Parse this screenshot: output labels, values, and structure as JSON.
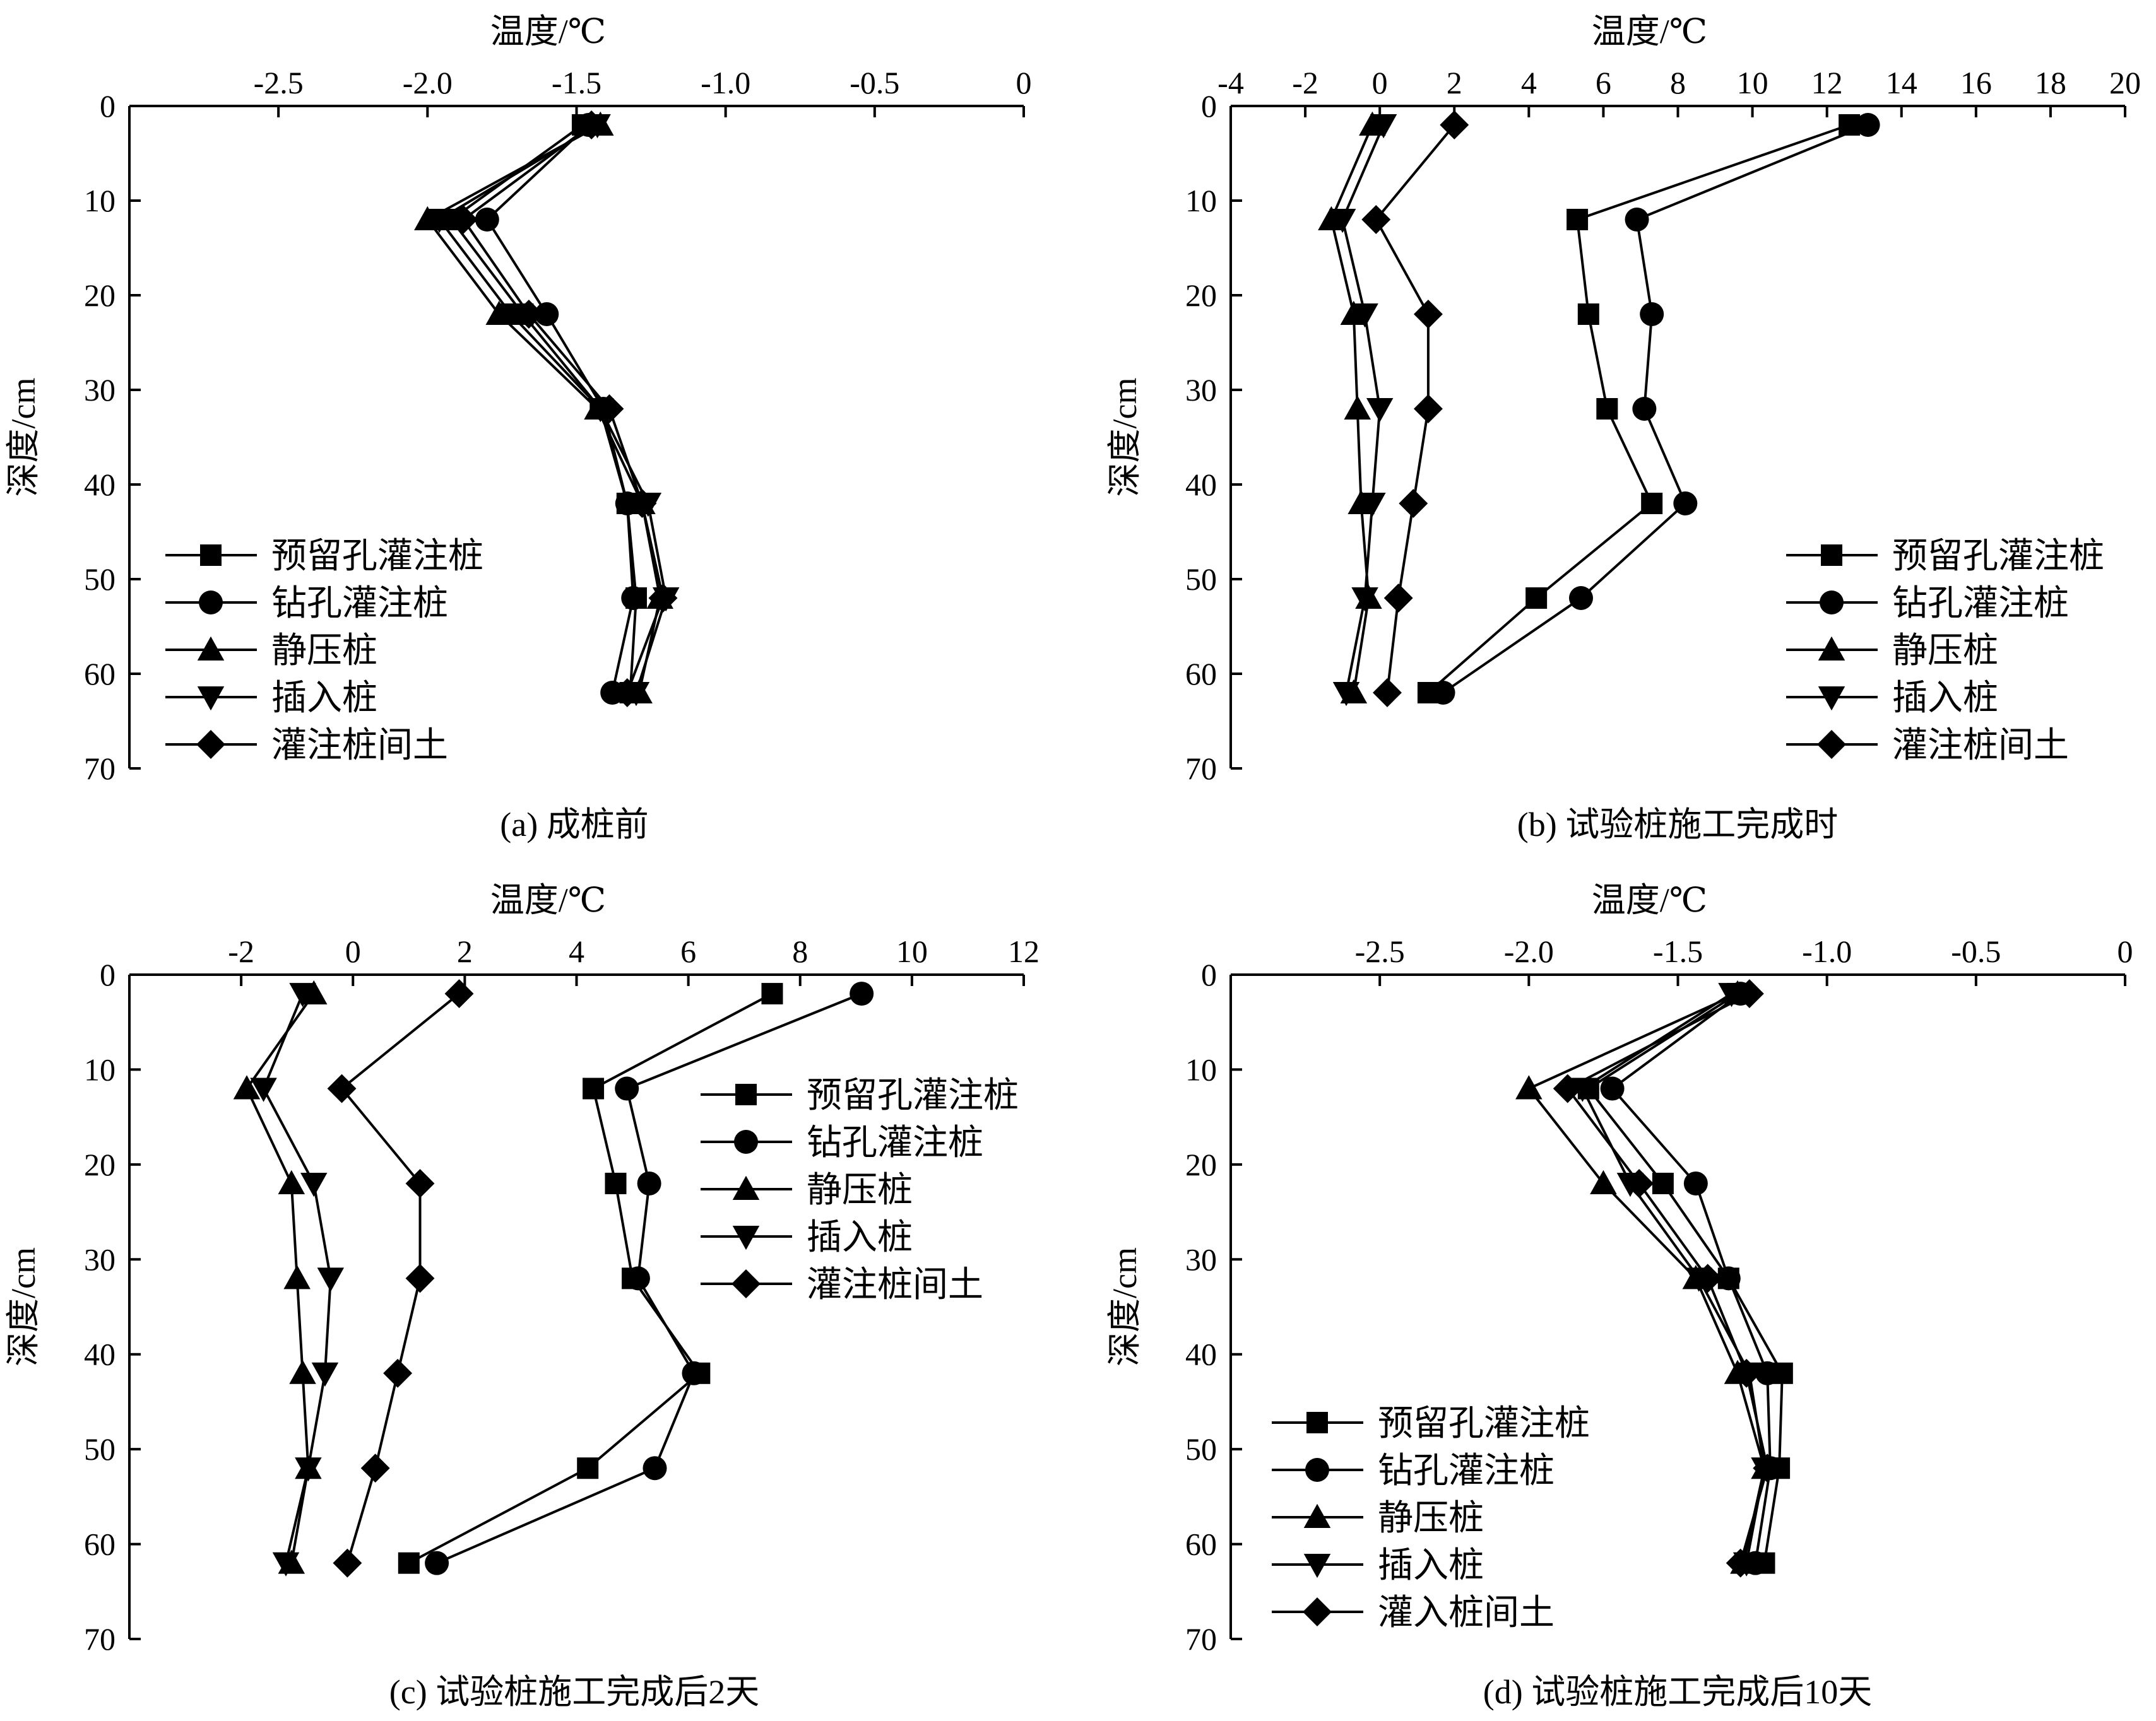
{
  "chart_data": [
    {
      "id": "a",
      "type": "line",
      "caption": "(a) 成桩前",
      "xlabel": "温度/℃",
      "ylabel": "深度/cm",
      "xlim": [
        -3.0,
        0
      ],
      "xticks": [
        -2.5,
        -2.0,
        -1.5,
        -1.0,
        -0.5,
        0
      ],
      "xtick_labels": [
        "-2.5",
        "-2.0",
        "-1.5",
        "-1.0",
        "-0.5",
        "0"
      ],
      "ylim": [
        0,
        70
      ],
      "yticks": [
        0,
        10,
        20,
        30,
        40,
        50,
        60,
        70
      ],
      "ytick_labels": [
        "0",
        "10",
        "20",
        "30",
        "40",
        "50",
        "60",
        "70"
      ],
      "y_inverted": true,
      "x_axis_position": "top",
      "legend_position": "bottom-left",
      "series": [
        {
          "name": "预留孔灌注桩",
          "marker": "square",
          "depth": [
            2,
            12,
            22,
            32,
            42,
            52,
            62
          ],
          "values": [
            -1.48,
            -1.92,
            -1.68,
            -1.42,
            -1.33,
            -1.3,
            -1.32
          ]
        },
        {
          "name": "钻孔灌注桩",
          "marker": "circle",
          "depth": [
            2,
            12,
            22,
            32,
            42,
            52,
            62
          ],
          "values": [
            -1.46,
            -1.8,
            -1.6,
            -1.41,
            -1.33,
            -1.31,
            -1.38
          ]
        },
        {
          "name": "静压桩",
          "marker": "triangle-up",
          "depth": [
            2,
            12,
            22,
            32,
            42,
            52,
            62
          ],
          "values": [
            -1.42,
            -2.0,
            -1.76,
            -1.43,
            -1.28,
            -1.22,
            -1.29
          ]
        },
        {
          "name": "插入桩",
          "marker": "triangle-down",
          "depth": [
            2,
            12,
            22,
            32,
            42,
            52,
            62
          ],
          "values": [
            -1.43,
            -1.96,
            -1.72,
            -1.42,
            -1.26,
            -1.2,
            -1.3
          ]
        },
        {
          "name": "灌注桩间土",
          "marker": "diamond",
          "depth": [
            2,
            12,
            22,
            32,
            42,
            52,
            62
          ],
          "values": [
            -1.45,
            -1.88,
            -1.66,
            -1.39,
            -1.28,
            -1.21,
            -1.33
          ]
        }
      ]
    },
    {
      "id": "b",
      "type": "line",
      "caption": "(b) 试验桩施工完成时",
      "xlabel": "温度/℃",
      "ylabel": "深度/cm",
      "xlim": [
        -4,
        20
      ],
      "xticks": [
        -4,
        -2,
        0,
        2,
        4,
        6,
        8,
        10,
        12,
        14,
        16,
        18,
        20
      ],
      "xtick_labels": [
        "-4",
        "-2",
        "0",
        "2",
        "4",
        "6",
        "8",
        "10",
        "12",
        "14",
        "16",
        "18",
        "20"
      ],
      "ylim": [
        0,
        70
      ],
      "yticks": [
        0,
        10,
        20,
        30,
        40,
        50,
        60,
        70
      ],
      "ytick_labels": [
        "0",
        "10",
        "20",
        "30",
        "40",
        "50",
        "60",
        "70"
      ],
      "y_inverted": true,
      "x_axis_position": "top",
      "legend_position": "bottom-right",
      "series": [
        {
          "name": "预留孔灌注桩",
          "marker": "square",
          "depth": [
            2,
            12,
            22,
            32,
            42,
            52,
            62
          ],
          "values": [
            12.6,
            5.3,
            5.6,
            6.1,
            7.3,
            4.2,
            1.3
          ]
        },
        {
          "name": "钻孔灌注桩",
          "marker": "circle",
          "depth": [
            2,
            12,
            22,
            32,
            42,
            52,
            62
          ],
          "values": [
            13.1,
            6.9,
            7.3,
            7.1,
            8.2,
            5.4,
            1.7
          ]
        },
        {
          "name": "静压桩",
          "marker": "triangle-up",
          "depth": [
            2,
            12,
            22,
            32,
            42,
            52,
            62
          ],
          "values": [
            -0.2,
            -1.3,
            -0.7,
            -0.6,
            -0.5,
            -0.3,
            -0.7
          ]
        },
        {
          "name": "插入桩",
          "marker": "triangle-down",
          "depth": [
            2,
            12,
            22,
            32,
            42,
            52,
            62
          ],
          "values": [
            0.1,
            -1.0,
            -0.4,
            0.0,
            -0.2,
            -0.4,
            -0.9
          ]
        },
        {
          "name": "灌注桩间土",
          "marker": "diamond",
          "depth": [
            2,
            12,
            22,
            32,
            42,
            52,
            62
          ],
          "values": [
            2.0,
            -0.1,
            1.3,
            1.3,
            0.9,
            0.5,
            0.2
          ]
        }
      ]
    },
    {
      "id": "c",
      "type": "line",
      "caption": "(c) 试验桩施工完成后2天",
      "xlabel": "温度/℃",
      "ylabel": "深度/cm",
      "xlim": [
        -4,
        12
      ],
      "xticks": [
        -2,
        0,
        2,
        4,
        6,
        8,
        10,
        12
      ],
      "xtick_labels": [
        "-2",
        "0",
        "2",
        "4",
        "6",
        "8",
        "10",
        "12"
      ],
      "ylim": [
        0,
        70
      ],
      "yticks": [
        0,
        10,
        20,
        30,
        40,
        50,
        60,
        70
      ],
      "ytick_labels": [
        "0",
        "10",
        "20",
        "30",
        "40",
        "50",
        "60",
        "70"
      ],
      "y_inverted": true,
      "x_axis_position": "top",
      "legend_position": "top-right",
      "series": [
        {
          "name": "预留孔灌注桩",
          "marker": "square",
          "depth": [
            2,
            12,
            22,
            32,
            42,
            52,
            62
          ],
          "values": [
            7.5,
            4.3,
            4.7,
            5.0,
            6.2,
            4.2,
            1.0
          ]
        },
        {
          "name": "钻孔灌注桩",
          "marker": "circle",
          "depth": [
            2,
            12,
            22,
            32,
            42,
            52,
            62
          ],
          "values": [
            9.1,
            4.9,
            5.3,
            5.1,
            6.1,
            5.4,
            1.5
          ]
        },
        {
          "name": "静压桩",
          "marker": "triangle-up",
          "depth": [
            2,
            12,
            22,
            32,
            42,
            52,
            62
          ],
          "values": [
            -0.7,
            -1.9,
            -1.1,
            -1.0,
            -0.9,
            -0.8,
            -1.1
          ]
        },
        {
          "name": "插入桩",
          "marker": "triangle-down",
          "depth": [
            2,
            12,
            22,
            32,
            42,
            52,
            62
          ],
          "values": [
            -0.9,
            -1.6,
            -0.7,
            -0.4,
            -0.5,
            -0.8,
            -1.2
          ]
        },
        {
          "name": "灌注桩间土",
          "marker": "diamond",
          "depth": [
            2,
            12,
            22,
            32,
            42,
            52,
            62
          ],
          "values": [
            1.9,
            -0.2,
            1.2,
            1.2,
            0.8,
            0.4,
            -0.1
          ]
        }
      ]
    },
    {
      "id": "d",
      "type": "line",
      "caption": "(d) 试验桩施工完成后10天",
      "xlabel": "温度/℃",
      "ylabel": "深度/cm",
      "xlim": [
        -3.0,
        0
      ],
      "xticks": [
        -2.5,
        -2.0,
        -1.5,
        -1.0,
        -0.5,
        0
      ],
      "xtick_labels": [
        "-2.5",
        "-2.0",
        "-1.5",
        "-1.0",
        "-0.5",
        "0"
      ],
      "ylim": [
        0,
        70
      ],
      "yticks": [
        0,
        10,
        20,
        30,
        40,
        50,
        60,
        70
      ],
      "ytick_labels": [
        "0",
        "10",
        "20",
        "30",
        "40",
        "50",
        "60",
        "70"
      ],
      "y_inverted": true,
      "x_axis_position": "top",
      "legend_position": "bottom-left",
      "series": [
        {
          "name": "预留孔灌注桩",
          "marker": "square",
          "depth": [
            2,
            12,
            22,
            32,
            42,
            52,
            62
          ],
          "values": [
            -1.3,
            -1.8,
            -1.55,
            -1.33,
            -1.15,
            -1.16,
            -1.21
          ]
        },
        {
          "name": "钻孔灌注桩",
          "marker": "circle",
          "depth": [
            2,
            12,
            22,
            32,
            42,
            52,
            62
          ],
          "values": [
            -1.29,
            -1.72,
            -1.44,
            -1.33,
            -1.2,
            -1.19,
            -1.24
          ]
        },
        {
          "name": "静压桩",
          "marker": "triangle-up",
          "depth": [
            2,
            12,
            22,
            32,
            42,
            52,
            62
          ],
          "values": [
            -1.3,
            -2.0,
            -1.75,
            -1.44,
            -1.3,
            -1.21,
            -1.28
          ]
        },
        {
          "name": "插入桩",
          "marker": "triangle-down",
          "depth": [
            2,
            12,
            22,
            32,
            42,
            52,
            62
          ],
          "values": [
            -1.32,
            -1.82,
            -1.66,
            -1.43,
            -1.26,
            -1.21,
            -1.27
          ]
        },
        {
          "name": "灌入桩间土",
          "marker": "diamond",
          "depth": [
            2,
            12,
            22,
            32,
            42,
            52,
            62
          ],
          "values": [
            -1.26,
            -1.87,
            -1.63,
            -1.4,
            -1.27,
            -1.2,
            -1.29
          ]
        }
      ]
    }
  ]
}
